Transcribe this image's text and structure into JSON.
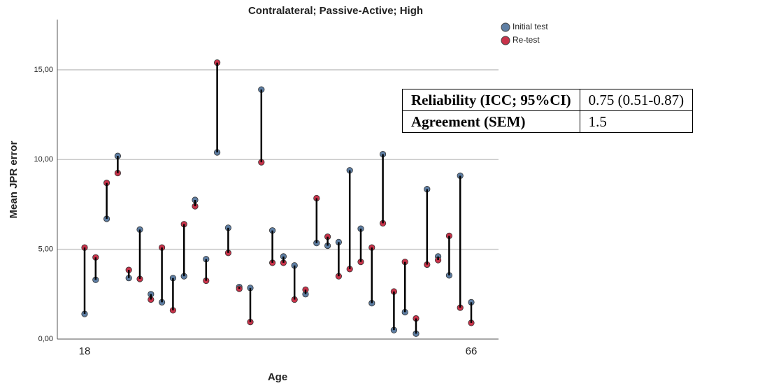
{
  "chart_data": {
    "type": "dumbbell",
    "title": "Contralateral; Passive-Active; High",
    "x_label": "Age",
    "y_label": "Mean JPR error",
    "categories": [
      "18",
      null,
      null,
      null,
      null,
      null,
      null,
      null,
      null,
      null,
      null,
      null,
      null,
      null,
      null,
      null,
      null,
      null,
      null,
      null,
      null,
      null,
      null,
      null,
      null,
      null,
      null,
      null,
      null,
      null,
      null,
      null,
      null,
      null,
      null,
      "66"
    ],
    "series": [
      {
        "name": "Initial test",
        "color": "#5e7ea3",
        "values": [
          1.4,
          3.3,
          6.7,
          10.2,
          3.4,
          6.1,
          2.5,
          2.05,
          3.4,
          3.5,
          7.75,
          4.45,
          10.4,
          6.2,
          2.9,
          2.85,
          13.9,
          6.05,
          4.6,
          4.1,
          2.5,
          5.35,
          5.2,
          5.4,
          9.4,
          6.15,
          2.0,
          10.3,
          0.5,
          1.5,
          0.3,
          8.35,
          4.6,
          3.55,
          9.1,
          2.05
        ]
      },
      {
        "name": "Re-test",
        "color": "#c8334a",
        "values": [
          5.1,
          4.55,
          8.7,
          9.25,
          3.85,
          3.35,
          2.2,
          5.1,
          1.6,
          6.4,
          7.4,
          3.25,
          15.4,
          4.8,
          2.8,
          0.95,
          9.85,
          4.25,
          4.25,
          2.2,
          2.75,
          7.85,
          5.7,
          3.5,
          3.9,
          4.3,
          5.1,
          6.45,
          2.65,
          4.3,
          1.15,
          4.15,
          4.4,
          5.75,
          1.75,
          0.9
        ]
      }
    ],
    "ylim": [
      0,
      17.8
    ],
    "yticks": [
      {
        "value": 0,
        "label": "0,00"
      },
      {
        "value": 5,
        "label": "5,00"
      },
      {
        "value": 10,
        "label": "10,00"
      },
      {
        "value": 15,
        "label": "15,00"
      }
    ],
    "grid": true,
    "legend": "top-right",
    "table": {
      "rows": [
        [
          "Reliability (ICC; 95%CI)",
          "0.75 (0.51-0.87)"
        ],
        [
          "Agreement (SEM)",
          "1.5"
        ]
      ]
    }
  }
}
